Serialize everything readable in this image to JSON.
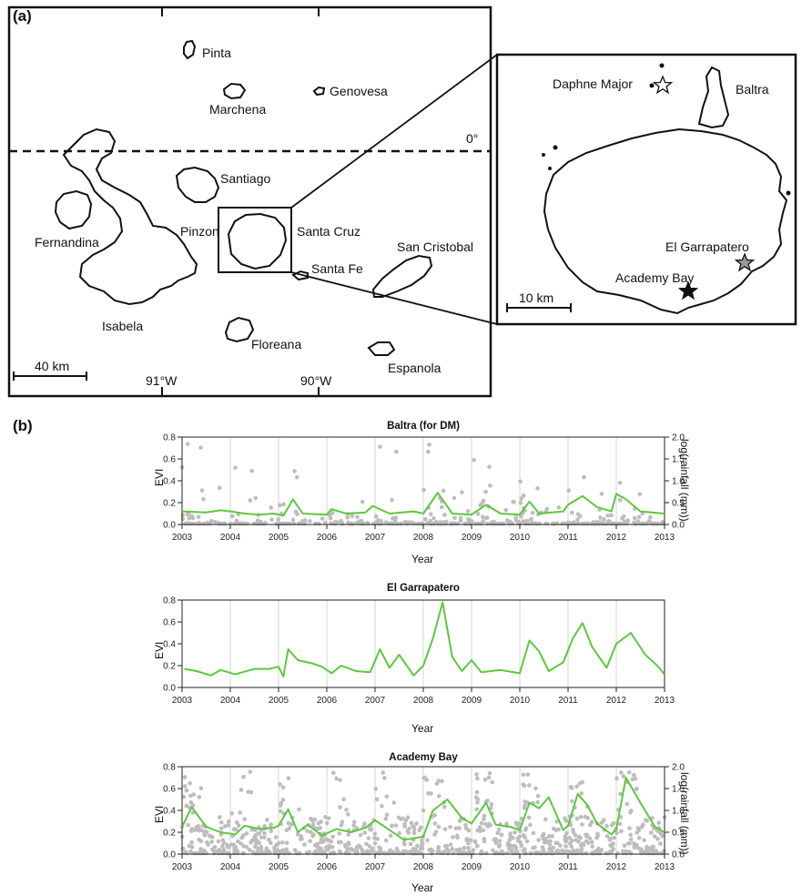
{
  "panel_a": {
    "label": "(a)",
    "islands": [
      "Pinta",
      "Genovesa",
      "Marchena",
      "Santiago",
      "Pinzon",
      "Santa Cruz",
      "Fernandina",
      "Santa Fe",
      "San Cristobal",
      "Isabela",
      "Floreana",
      "Espanola"
    ],
    "equator_label": "0°",
    "scale_main": "40 km",
    "lon_labels": [
      "91°W",
      "90°W"
    ],
    "inset_sites": [
      "Daphne Major",
      "Baltra",
      "El Garrapatero",
      "Academy Bay"
    ],
    "scale_inset": "10 km",
    "site_colors": {
      "Daphne Major": "#ffffff",
      "El Garrapatero": "#999999",
      "Academy Bay": "#111111"
    }
  },
  "panel_b": {
    "label": "(b)",
    "colors": {
      "evi": "#5cc83e",
      "rain": "#bdbdbd"
    }
  },
  "chart_data": [
    {
      "type": "line",
      "title": "Baltra (for DM)",
      "xlabel": "Year",
      "ylabel": "EVI",
      "y2label": "log(rainfall (mm))",
      "xlim": [
        2003,
        2013
      ],
      "ylim": [
        0,
        0.8
      ],
      "y2lim": [
        0,
        2.0
      ],
      "x_ticks": [
        "2003",
        "2004",
        "2005",
        "2006",
        "2007",
        "2008",
        "2009",
        "2010",
        "2011",
        "2012",
        "2013"
      ],
      "y_ticks": [
        "0.0",
        "0.2",
        "0.4",
        "0.6",
        "0.8"
      ],
      "y2_ticks": [
        "0.0",
        "0.5",
        "1.0",
        "1.5",
        "2.0"
      ],
      "grid": "vertical at each year",
      "series": [
        {
          "values": [
            [
              2003.0,
              0.12
            ],
            [
              2003.5,
              0.11
            ],
            [
              2003.8,
              0.13
            ],
            [
              2004.0,
              0.12
            ],
            [
              2004.3,
              0.1
            ],
            [
              2004.6,
              0.09
            ],
            [
              2004.9,
              0.1
            ],
            [
              2005.1,
              0.08
            ],
            [
              2005.3,
              0.23
            ],
            [
              2005.5,
              0.1
            ],
            [
              2006.0,
              0.09
            ],
            [
              2006.1,
              0.14
            ],
            [
              2006.4,
              0.1
            ],
            [
              2006.8,
              0.11
            ],
            [
              2006.95,
              0.17
            ],
            [
              2007.3,
              0.1
            ],
            [
              2007.8,
              0.12
            ],
            [
              2008.0,
              0.1
            ],
            [
              2008.3,
              0.29
            ],
            [
              2008.6,
              0.1
            ],
            [
              2009.0,
              0.09
            ],
            [
              2009.3,
              0.18
            ],
            [
              2009.6,
              0.1
            ],
            [
              2010.0,
              0.09
            ],
            [
              2010.2,
              0.21
            ],
            [
              2010.4,
              0.1
            ],
            [
              2010.9,
              0.12
            ],
            [
              2011.0,
              0.18
            ],
            [
              2011.3,
              0.26
            ],
            [
              2011.6,
              0.16
            ],
            [
              2011.9,
              0.12
            ],
            [
              2012.0,
              0.28
            ],
            [
              2012.2,
              0.23
            ],
            [
              2012.5,
              0.12
            ],
            [
              2013.0,
              0.1
            ]
          ]
        }
      ]
    },
    {
      "type": "line",
      "title": "El Garrapatero",
      "xlabel": "Year",
      "ylabel": "EVI",
      "xlim": [
        2003,
        2013
      ],
      "ylim": [
        0,
        0.8
      ],
      "x_ticks": [
        "2003",
        "2004",
        "2005",
        "2006",
        "2007",
        "2008",
        "2009",
        "2010",
        "2011",
        "2012",
        "2013"
      ],
      "y_ticks": [
        "0.0",
        "0.2",
        "0.4",
        "0.6",
        "0.8"
      ],
      "grid": "vertical at each year",
      "series": [
        {
          "values": [
            [
              2003.05,
              0.17
            ],
            [
              2003.3,
              0.15
            ],
            [
              2003.6,
              0.11
            ],
            [
              2003.8,
              0.16
            ],
            [
              2004.1,
              0.12
            ],
            [
              2004.5,
              0.17
            ],
            [
              2004.8,
              0.17
            ],
            [
              2005.0,
              0.19
            ],
            [
              2005.1,
              0.1
            ],
            [
              2005.2,
              0.35
            ],
            [
              2005.4,
              0.25
            ],
            [
              2005.7,
              0.22
            ],
            [
              2005.9,
              0.19
            ],
            [
              2006.1,
              0.13
            ],
            [
              2006.3,
              0.2
            ],
            [
              2006.6,
              0.15
            ],
            [
              2006.9,
              0.14
            ],
            [
              2007.1,
              0.35
            ],
            [
              2007.3,
              0.18
            ],
            [
              2007.5,
              0.3
            ],
            [
              2007.8,
              0.11
            ],
            [
              2008.0,
              0.2
            ],
            [
              2008.2,
              0.45
            ],
            [
              2008.4,
              0.78
            ],
            [
              2008.6,
              0.28
            ],
            [
              2008.8,
              0.15
            ],
            [
              2009.0,
              0.25
            ],
            [
              2009.2,
              0.14
            ],
            [
              2009.6,
              0.16
            ],
            [
              2010.0,
              0.13
            ],
            [
              2010.2,
              0.43
            ],
            [
              2010.4,
              0.33
            ],
            [
              2010.6,
              0.15
            ],
            [
              2010.9,
              0.23
            ],
            [
              2011.1,
              0.45
            ],
            [
              2011.3,
              0.59
            ],
            [
              2011.5,
              0.37
            ],
            [
              2011.8,
              0.18
            ],
            [
              2012.0,
              0.4
            ],
            [
              2012.3,
              0.5
            ],
            [
              2012.6,
              0.3
            ],
            [
              2012.85,
              0.2
            ],
            [
              2013.0,
              0.12
            ]
          ]
        }
      ]
    },
    {
      "type": "line",
      "title": "Academy Bay",
      "xlabel": "Year",
      "ylabel": "EVI",
      "y2label": "log(rainfall (mm))",
      "xlim": [
        2003,
        2013
      ],
      "ylim": [
        0,
        0.8
      ],
      "y2lim": [
        0,
        2.0
      ],
      "x_ticks": [
        "2003",
        "2004",
        "2005",
        "2006",
        "2007",
        "2008",
        "2009",
        "2010",
        "2011",
        "2012",
        "2013"
      ],
      "y_ticks": [
        "0.0",
        "0.2",
        "0.4",
        "0.6",
        "0.8"
      ],
      "y2_ticks": [
        "0.0",
        "0.5",
        "1.0",
        "1.5",
        "2.0"
      ],
      "grid": "vertical at each year",
      "series": [
        {
          "values": [
            [
              2003.0,
              0.25
            ],
            [
              2003.2,
              0.43
            ],
            [
              2003.5,
              0.25
            ],
            [
              2003.8,
              0.2
            ],
            [
              2004.1,
              0.18
            ],
            [
              2004.3,
              0.26
            ],
            [
              2004.6,
              0.23
            ],
            [
              2004.9,
              0.24
            ],
            [
              2005.0,
              0.26
            ],
            [
              2005.2,
              0.41
            ],
            [
              2005.4,
              0.2
            ],
            [
              2005.6,
              0.27
            ],
            [
              2005.9,
              0.17
            ],
            [
              2006.2,
              0.23
            ],
            [
              2006.5,
              0.2
            ],
            [
              2006.8,
              0.24
            ],
            [
              2007.0,
              0.31
            ],
            [
              2007.3,
              0.22
            ],
            [
              2007.6,
              0.13
            ],
            [
              2008.0,
              0.16
            ],
            [
              2008.2,
              0.4
            ],
            [
              2008.5,
              0.5
            ],
            [
              2008.8,
              0.33
            ],
            [
              2009.0,
              0.28
            ],
            [
              2009.3,
              0.47
            ],
            [
              2009.5,
              0.27
            ],
            [
              2009.8,
              0.25
            ],
            [
              2010.0,
              0.22
            ],
            [
              2010.2,
              0.47
            ],
            [
              2010.4,
              0.42
            ],
            [
              2010.6,
              0.52
            ],
            [
              2010.9,
              0.22
            ],
            [
              2011.0,
              0.26
            ],
            [
              2011.2,
              0.55
            ],
            [
              2011.4,
              0.45
            ],
            [
              2011.6,
              0.28
            ],
            [
              2011.9,
              0.18
            ],
            [
              2012.0,
              0.23
            ],
            [
              2012.2,
              0.7
            ],
            [
              2012.5,
              0.47
            ],
            [
              2012.8,
              0.25
            ],
            [
              2013.0,
              0.2
            ]
          ]
        }
      ]
    }
  ]
}
